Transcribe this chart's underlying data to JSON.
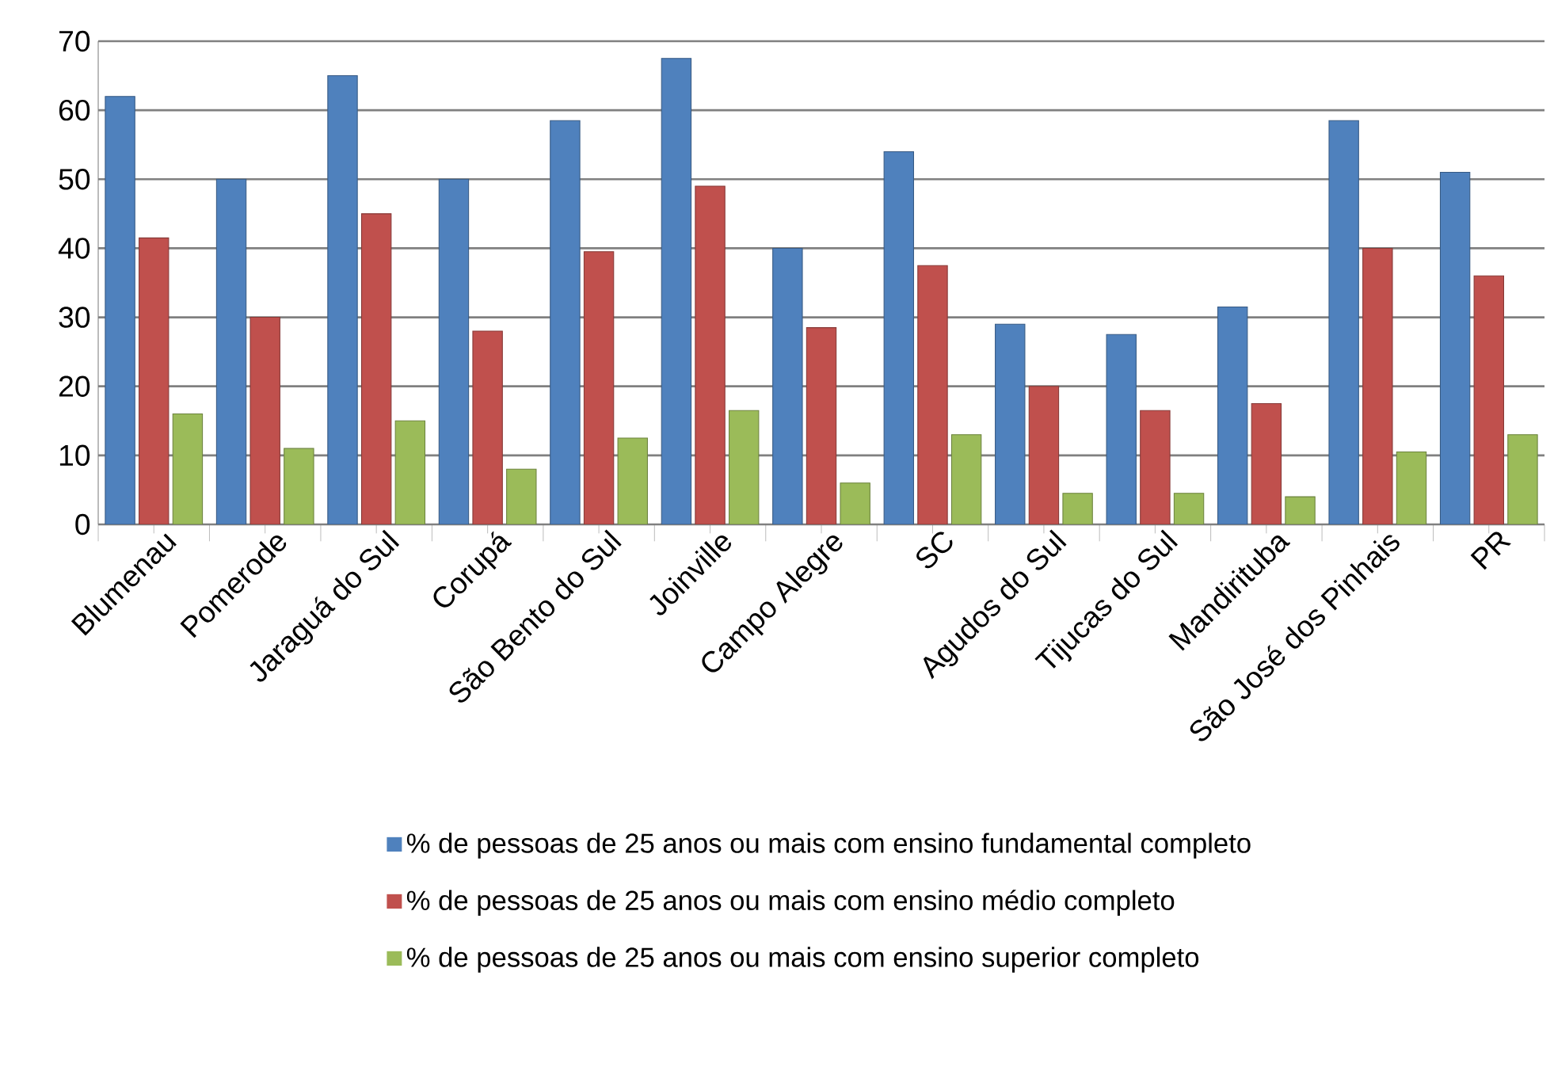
{
  "chart_data": {
    "type": "bar",
    "categories": [
      "Blumenau",
      "Pomerode",
      "Jaraguá do Sul",
      "Corupá",
      "São Bento do Sul",
      "Joinville",
      "Campo Alegre",
      "SC",
      "Agudos do Sul",
      "Tijucas do Sul",
      "Mandirituba",
      "São José dos Pinhais",
      "PR"
    ],
    "series": [
      {
        "name": "% de pessoas de 25 anos ou mais com ensino fundamental completo",
        "color": "#4f81bd",
        "values": [
          62,
          50,
          65,
          50,
          58.5,
          67.5,
          40,
          54,
          29,
          27.5,
          31.5,
          58.5,
          51
        ]
      },
      {
        "name": "% de pessoas de 25 anos ou mais com ensino médio completo",
        "color": "#c0504d",
        "values": [
          41.5,
          30,
          45,
          28,
          39.5,
          49,
          28.5,
          37.5,
          20,
          16.5,
          17.5,
          40,
          36
        ]
      },
      {
        "name": "% de pessoas de 25 anos ou mais com ensino superior completo",
        "color": "#9bbb59",
        "values": [
          16,
          11,
          15,
          8,
          12.5,
          16.5,
          6,
          13,
          4.5,
          4.5,
          4,
          10.5,
          13
        ]
      }
    ],
    "ylim": [
      0,
      70
    ],
    "yticks": [
      0,
      10,
      20,
      30,
      40,
      50,
      60,
      70
    ],
    "grid": "y",
    "legend": "bottom"
  }
}
